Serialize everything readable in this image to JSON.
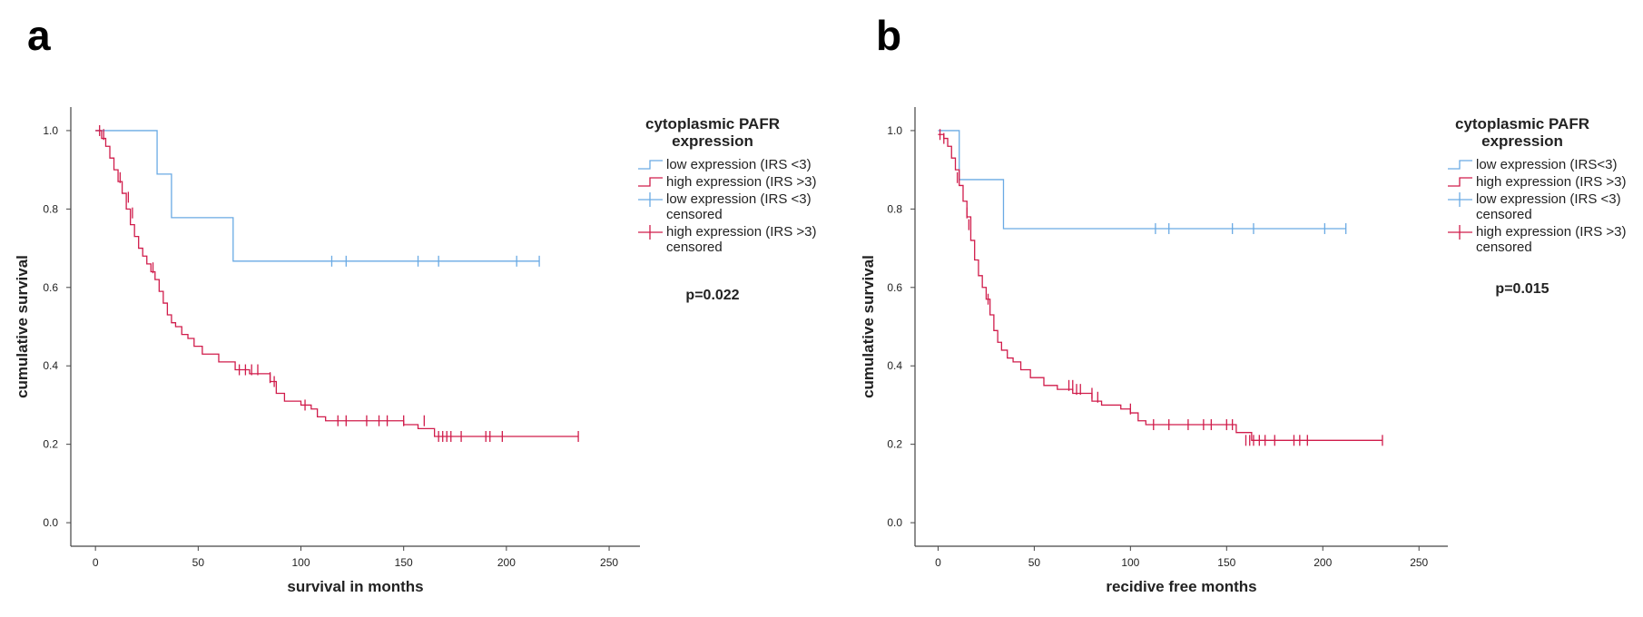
{
  "panels": [
    "a",
    "b"
  ],
  "chart_data": [
    {
      "type": "line",
      "subtype": "kaplan-meier",
      "panel": "a",
      "xlabel": "survival in months",
      "ylabel": "cumulative survival",
      "xlim": [
        -12,
        265
      ],
      "ylim": [
        -0.06,
        1.06
      ],
      "xticks": [
        0,
        50,
        100,
        150,
        200,
        250
      ],
      "yticks": [
        0.0,
        0.2,
        0.4,
        0.6,
        0.8,
        1.0
      ],
      "ytick_labels": [
        "0.0",
        "0.2",
        "0.4",
        "0.6",
        "0.8",
        "1.0"
      ],
      "legend_title": "cytoplasmic PAFR expression",
      "legend_title_lines": [
        "cytoplasmic PAFR",
        "expression"
      ],
      "p_value": "p=0.022",
      "series": [
        {
          "name": "low expression (IRS <3)",
          "censored_label": [
            "low expression (IRS <3)",
            "censored"
          ],
          "color": "#6aaae4",
          "x": [
            0,
            30,
            37,
            67,
            216
          ],
          "y": [
            1.0,
            0.889,
            0.778,
            0.667,
            0.667
          ],
          "censored_x": [
            115,
            122,
            157,
            167,
            205,
            216
          ],
          "censored_y": [
            0.667,
            0.667,
            0.667,
            0.667,
            0.667,
            0.667
          ]
        },
        {
          "name": "high expression (IRS >3)",
          "censored_label": [
            "high expression (IRS >3)",
            "censored"
          ],
          "color": "#d01c4b",
          "x": [
            0,
            3,
            5,
            7,
            9,
            11,
            13,
            15,
            17,
            19,
            21,
            23,
            25,
            27,
            29,
            31,
            33,
            35,
            37,
            39,
            42,
            45,
            48,
            52,
            60,
            68,
            75,
            85,
            88,
            92,
            100,
            105,
            108,
            112,
            150,
            157,
            165,
            235
          ],
          "y": [
            1.0,
            0.98,
            0.96,
            0.93,
            0.9,
            0.87,
            0.84,
            0.8,
            0.76,
            0.73,
            0.7,
            0.68,
            0.66,
            0.64,
            0.62,
            0.59,
            0.56,
            0.53,
            0.51,
            0.5,
            0.48,
            0.47,
            0.45,
            0.43,
            0.41,
            0.39,
            0.38,
            0.36,
            0.33,
            0.31,
            0.3,
            0.29,
            0.27,
            0.26,
            0.25,
            0.24,
            0.22,
            0.22
          ],
          "censored_x": [
            2,
            4,
            12,
            16,
            18,
            28,
            70,
            73,
            76,
            79,
            85,
            87,
            102,
            118,
            122,
            132,
            138,
            142,
            150,
            160,
            167,
            169,
            171,
            173,
            178,
            190,
            192,
            198,
            235
          ],
          "censored_y": [
            1.0,
            0.99,
            0.88,
            0.83,
            0.79,
            0.65,
            0.39,
            0.39,
            0.39,
            0.39,
            0.37,
            0.36,
            0.3,
            0.26,
            0.26,
            0.26,
            0.26,
            0.26,
            0.26,
            0.26,
            0.22,
            0.22,
            0.22,
            0.22,
            0.22,
            0.22,
            0.22,
            0.22,
            0.22
          ]
        }
      ]
    },
    {
      "type": "line",
      "subtype": "kaplan-meier",
      "panel": "b",
      "xlabel": "recidive free months",
      "ylabel": "cumulative survival",
      "xlim": [
        -12,
        265
      ],
      "ylim": [
        -0.06,
        1.06
      ],
      "xticks": [
        0,
        50,
        100,
        150,
        200,
        250
      ],
      "yticks": [
        0.0,
        0.2,
        0.4,
        0.6,
        0.8,
        1.0
      ],
      "ytick_labels": [
        "0.0",
        "0.2",
        "0.4",
        "0.6",
        "0.8",
        "1.0"
      ],
      "legend_title": "cytoplasmic PAFR expression",
      "legend_title_lines": [
        "cytoplasmic PAFR",
        "expression"
      ],
      "p_value": "p=0.015",
      "series": [
        {
          "name": "low expression (IRS<3)",
          "censored_label": [
            "low expression (IRS <3)",
            "censored"
          ],
          "color": "#6aaae4",
          "x": [
            0,
            11,
            34,
            212
          ],
          "y": [
            1.0,
            0.875,
            0.75,
            0.75
          ],
          "censored_x": [
            113,
            120,
            153,
            164,
            201,
            212
          ],
          "censored_y": [
            0.75,
            0.75,
            0.75,
            0.75,
            0.75,
            0.75
          ]
        },
        {
          "name": "high expression (IRS >3)",
          "censored_label": [
            "high expression (IRS >3)",
            "censored"
          ],
          "color": "#d01c4b",
          "x": [
            0,
            3,
            5,
            7,
            9,
            11,
            13,
            15,
            17,
            19,
            21,
            23,
            25,
            27,
            29,
            31,
            33,
            36,
            39,
            43,
            48,
            55,
            62,
            70,
            80,
            85,
            95,
            100,
            104,
            108,
            155,
            163,
            231
          ],
          "y": [
            0.99,
            0.98,
            0.96,
            0.93,
            0.9,
            0.86,
            0.82,
            0.78,
            0.72,
            0.67,
            0.63,
            0.6,
            0.57,
            0.53,
            0.49,
            0.46,
            0.44,
            0.42,
            0.41,
            0.39,
            0.37,
            0.35,
            0.34,
            0.33,
            0.31,
            0.3,
            0.29,
            0.28,
            0.26,
            0.25,
            0.23,
            0.21,
            0.21
          ],
          "censored_x": [
            1,
            3,
            10,
            15,
            16,
            26,
            68,
            70,
            72,
            74,
            80,
            83,
            100,
            112,
            120,
            130,
            138,
            142,
            150,
            153,
            160,
            162,
            164,
            167,
            170,
            175,
            185,
            188,
            192,
            231
          ],
          "censored_y": [
            0.99,
            0.98,
            0.88,
            0.79,
            0.76,
            0.57,
            0.35,
            0.35,
            0.34,
            0.34,
            0.33,
            0.32,
            0.29,
            0.25,
            0.25,
            0.25,
            0.25,
            0.25,
            0.25,
            0.25,
            0.21,
            0.21,
            0.21,
            0.21,
            0.21,
            0.21,
            0.21,
            0.21,
            0.21,
            0.21
          ]
        }
      ]
    }
  ]
}
